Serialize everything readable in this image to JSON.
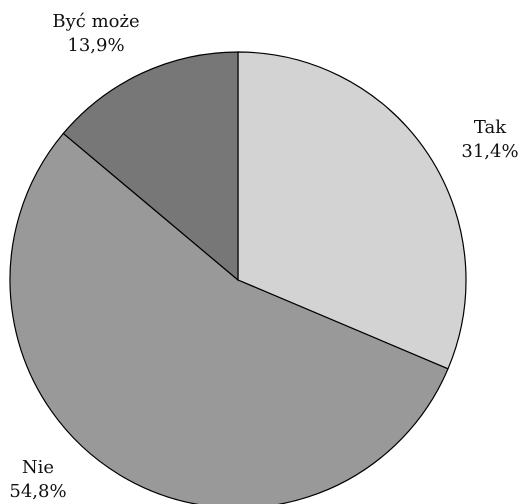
{
  "chart_data": {
    "type": "pie",
    "categories": [
      "Tak",
      "Nie",
      "Być może"
    ],
    "values": [
      31.4,
      54.8,
      13.9
    ],
    "value_labels": [
      "31,4%",
      "54,8%",
      "13,9%"
    ],
    "colors": [
      "#d3d3d3",
      "#999999",
      "#777777"
    ]
  }
}
